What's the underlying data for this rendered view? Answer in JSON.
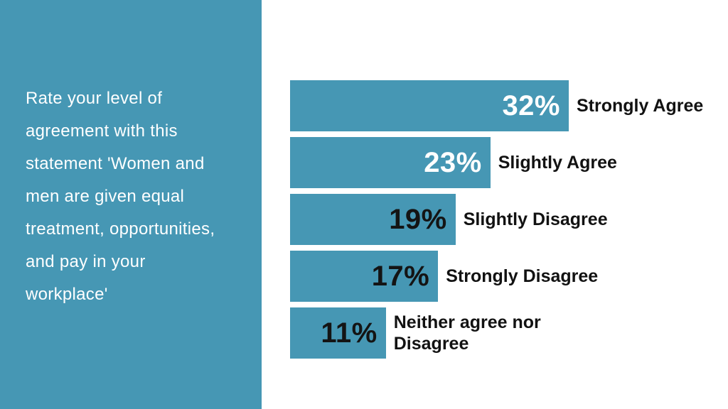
{
  "slide": {
    "background": "#FFFFFF"
  },
  "panel": {
    "background": "#4697B4",
    "text_color": "#FFFFFF",
    "statement": "Rate your level of agreement with this statement 'Women and men are given equal treatment, opportunities, and pay in your workplace'",
    "lines": [
      "Rate your level of",
      "agreement with this",
      "statement 'Women and",
      "men are given equal",
      "treatment, opportunities,",
      "and pay in your",
      "workplace'"
    ]
  },
  "chart_data": {
    "type": "bar",
    "orientation": "horizontal",
    "title": "Rate your level of agreement with this statement 'Women and men are given equal treatment, opportunities, and pay in your workplace'",
    "categories": [
      "Strongly Agree",
      "Slightly Agree",
      "Slightly Disagree",
      "Strongly Disagree",
      "Neither agree nor Disagree"
    ],
    "values": [
      32,
      23,
      19,
      17,
      11
    ],
    "value_labels": [
      "32%",
      "23%",
      "19%",
      "17%",
      "11%"
    ],
    "bar_color": "#4697B4",
    "category_label_color": "#121212",
    "xlim": [
      0,
      50
    ],
    "grid": false,
    "legend": "none",
    "bars": [
      {
        "label": "Strongly Agree",
        "label_lines": [
          "Strongly Agree"
        ],
        "value": 32,
        "value_label": "32%",
        "value_color": "#FFFFFF"
      },
      {
        "label": "Slightly Agree",
        "label_lines": [
          "Slightly Agree"
        ],
        "value": 23,
        "value_label": "23%",
        "value_color": "#FFFFFF"
      },
      {
        "label": "Slightly Disagree",
        "label_lines": [
          "Slightly Disagree"
        ],
        "value": 19,
        "value_label": "19%",
        "value_color": "#141414"
      },
      {
        "label": "Strongly Disagree",
        "label_lines": [
          "Strongly Disagree"
        ],
        "value": 17,
        "value_label": "17%",
        "value_color": "#141414"
      },
      {
        "label": "Neither agree nor Disagree",
        "label_lines": [
          "Neither agree nor",
          "Disagree"
        ],
        "value": 11,
        "value_label": "11%",
        "value_color": "#141414"
      }
    ]
  }
}
